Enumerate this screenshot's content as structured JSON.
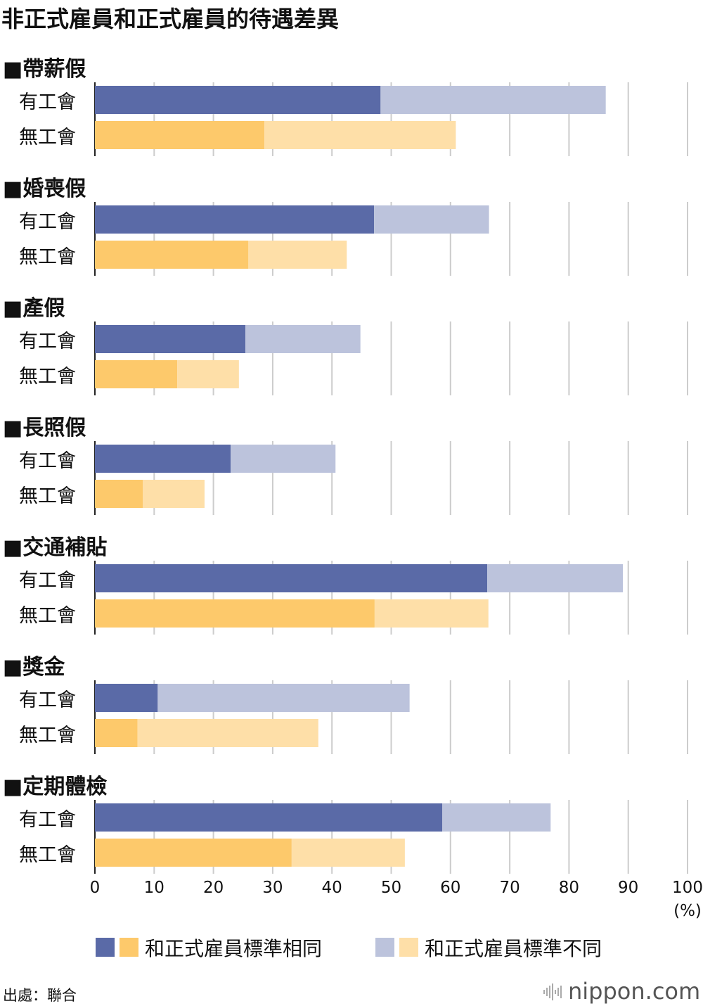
{
  "chart_data": {
    "type": "bar",
    "stacked": true,
    "orientation": "horizontal",
    "title": "非正式雇員和正式雇員的待遇差異",
    "xlabel": "(%)",
    "xlim": [
      0,
      100
    ],
    "xticks": [
      "0",
      "10",
      "20",
      "30",
      "40",
      "50",
      "60",
      "70",
      "80",
      "90",
      "100"
    ],
    "grid": true,
    "groups": [
      {
        "name": "■帶薪假",
        "rows": [
          {
            "label": "有工會",
            "same": 48.2,
            "different": 38.0
          },
          {
            "label": "無工會",
            "same": 28.6,
            "different": 32.3
          }
        ]
      },
      {
        "name": "■婚喪假",
        "rows": [
          {
            "label": "有工會",
            "same": 47.1,
            "different": 19.4
          },
          {
            "label": "無工會",
            "same": 25.9,
            "different": 16.6
          }
        ]
      },
      {
        "name": "■產假",
        "rows": [
          {
            "label": "有工會",
            "same": 25.4,
            "different": 19.4
          },
          {
            "label": "無工會",
            "same": 13.9,
            "different": 10.4
          }
        ]
      },
      {
        "name": "■長照假",
        "rows": [
          {
            "label": "有工會",
            "same": 22.9,
            "different": 17.7
          },
          {
            "label": "無工會",
            "same": 8.1,
            "different": 10.4
          }
        ]
      },
      {
        "name": "■交通補貼",
        "rows": [
          {
            "label": "有工會",
            "same": 66.2,
            "different": 22.9
          },
          {
            "label": "無工會",
            "same": 47.2,
            "different": 19.2
          }
        ]
      },
      {
        "name": "■獎金",
        "rows": [
          {
            "label": "有工會",
            "same": 10.6,
            "different": 42.5
          },
          {
            "label": "無工會",
            "same": 7.2,
            "different": 30.5
          }
        ]
      },
      {
        "name": "■定期體檢",
        "rows": [
          {
            "label": "有工會",
            "same": 58.6,
            "different": 18.3
          },
          {
            "label": "無工會",
            "same": 33.2,
            "different": 19.1
          }
        ]
      }
    ],
    "legend": {
      "same": "和正式雇員標準相同",
      "different": "和正式雇員標準不同",
      "placement": "bottom"
    },
    "colors": {
      "union_same": "#5a6aa7",
      "union_diff": "#bcc3dc",
      "nounion_same": "#fdc96b",
      "nounion_diff": "#fedfa8"
    }
  },
  "source": "出處：聯合",
  "brand": "nippon.com"
}
